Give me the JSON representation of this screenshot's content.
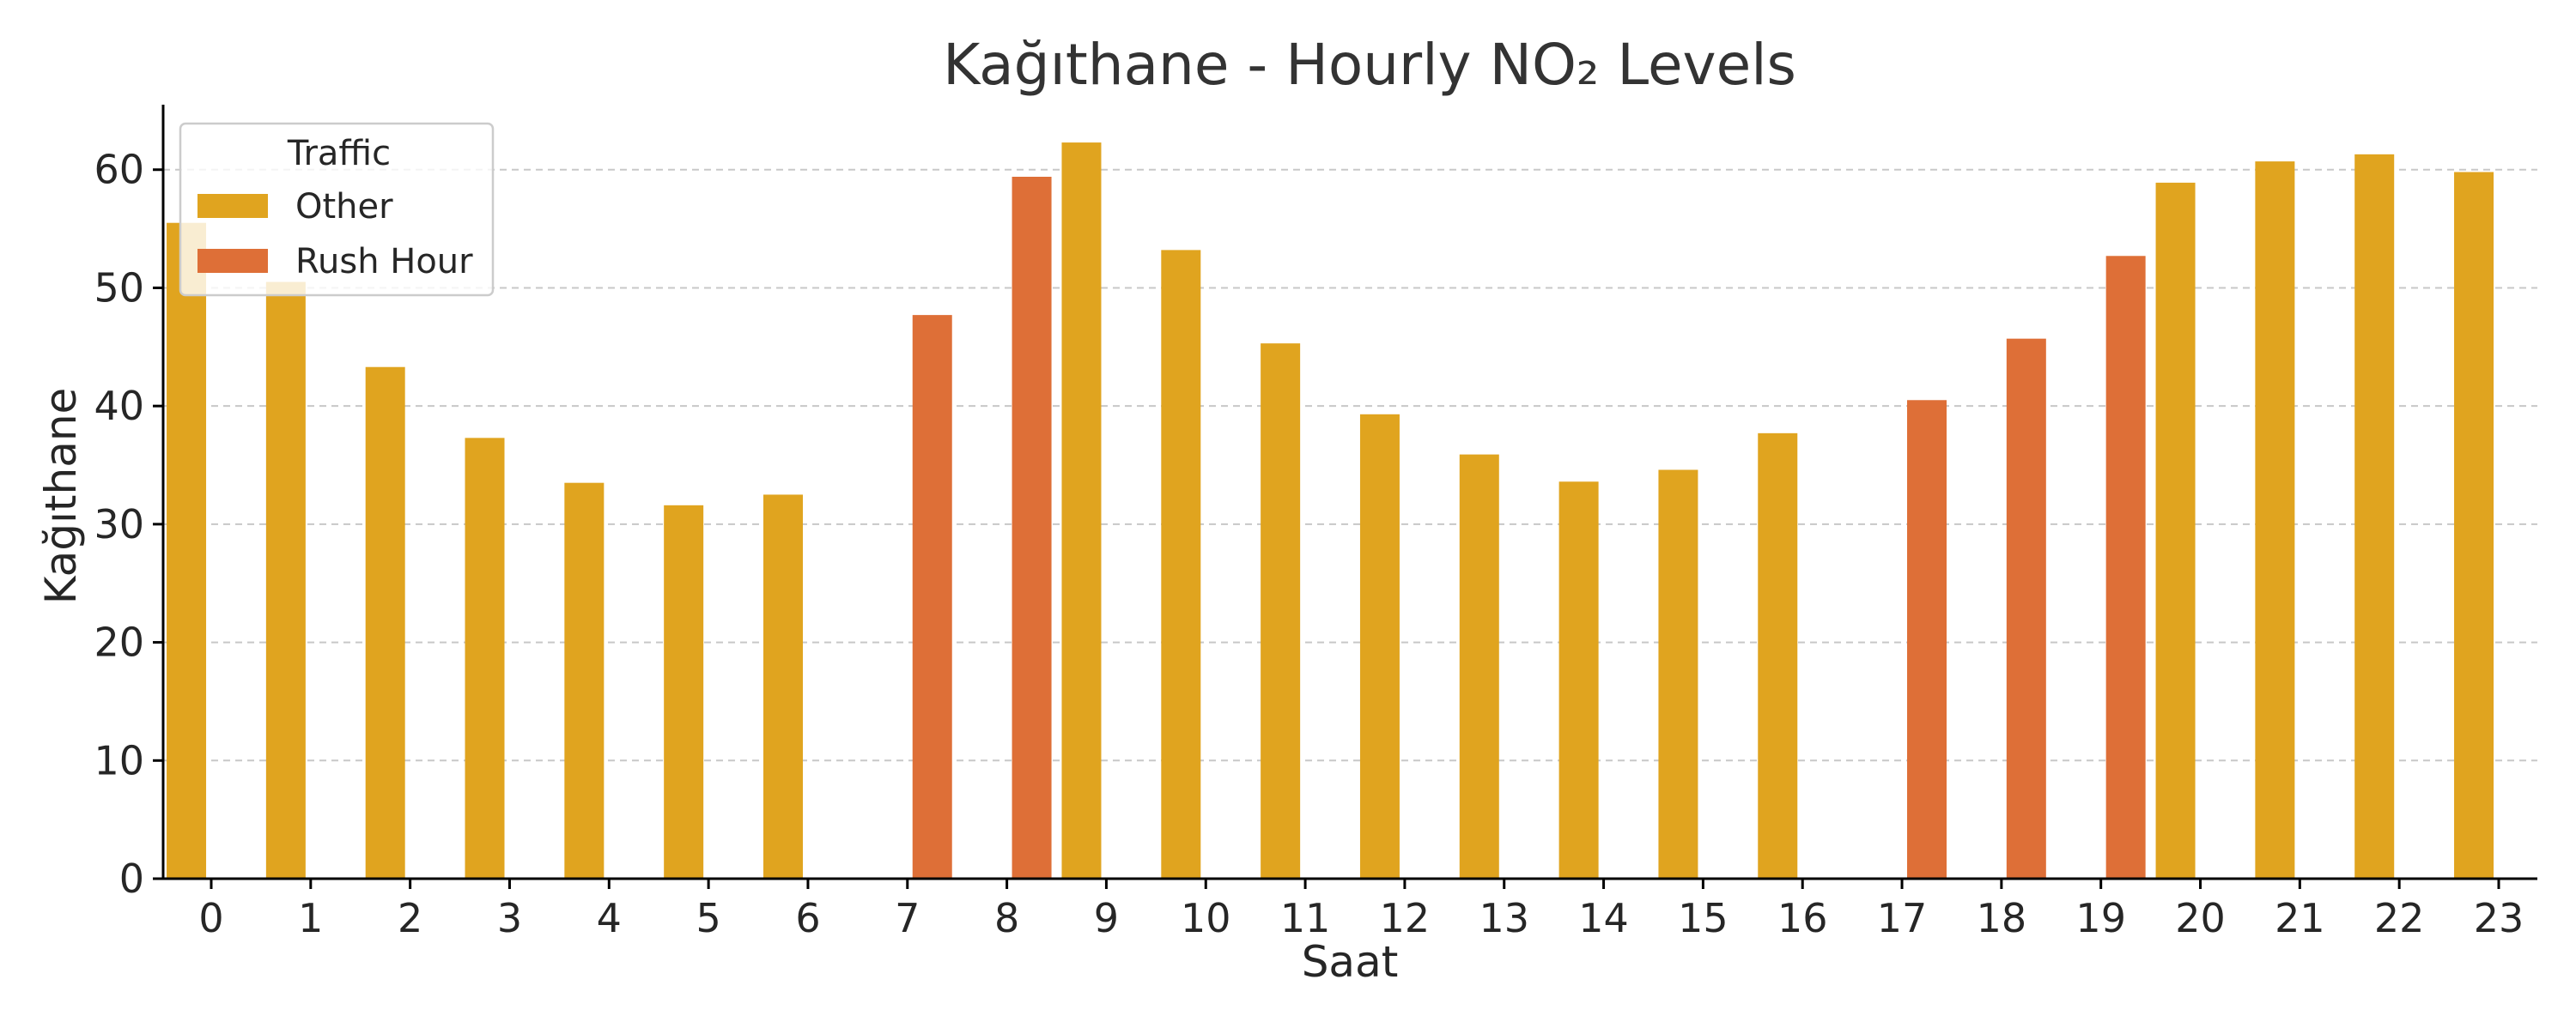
{
  "chart_data": {
    "type": "bar",
    "title": "Kağıthane - Hourly NO₂ Levels",
    "xlabel": "Saat",
    "ylabel": "Kağıthane",
    "ylim": [
      0,
      65.5
    ],
    "yticks": [
      0,
      10,
      20,
      30,
      40,
      50,
      60
    ],
    "grid": "horizontal dashed",
    "categories": [
      "0",
      "1",
      "2",
      "3",
      "4",
      "5",
      "6",
      "7",
      "8",
      "9",
      "10",
      "11",
      "12",
      "13",
      "14",
      "15",
      "16",
      "17",
      "18",
      "19",
      "20",
      "21",
      "22",
      "23"
    ],
    "series": [
      {
        "name": "Other",
        "color": "#E0A41F",
        "values": [
          55.5,
          50.5,
          43.3,
          37.3,
          33.5,
          31.6,
          32.5,
          null,
          null,
          62.3,
          53.2,
          45.3,
          39.3,
          35.9,
          33.6,
          34.6,
          37.7,
          null,
          null,
          null,
          58.9,
          60.7,
          61.3,
          59.8
        ]
      },
      {
        "name": "Rush Hour",
        "color": "#DE6F37",
        "values": [
          null,
          null,
          null,
          null,
          null,
          null,
          null,
          47.7,
          59.4,
          null,
          null,
          null,
          null,
          null,
          null,
          null,
          null,
          40.5,
          45.7,
          52.7,
          null,
          null,
          null,
          null
        ]
      }
    ],
    "legend": {
      "title": "Traffic",
      "position": "top-left"
    }
  }
}
